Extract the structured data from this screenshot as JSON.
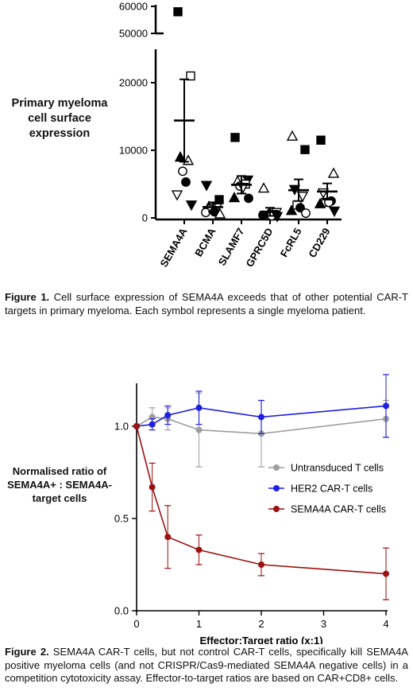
{
  "figure1": {
    "chart_data": {
      "type": "scatter",
      "ylabel": "Primary myeloma cell surface expression",
      "categories": [
        "SEMA4A",
        "BCMA",
        "SLAMF7",
        "GPRC5D",
        "FcRL5",
        "CD229"
      ],
      "y_ticks": [
        0,
        10000,
        20000,
        50000,
        60000
      ],
      "y_tick_labels": [
        "0",
        "10000",
        "20000",
        "50000",
        "60000"
      ],
      "y_axis_break": [
        22000,
        48000
      ],
      "means": [
        14400,
        1600,
        4900,
        900,
        4100,
        3900
      ],
      "sem_upper": [
        20500,
        2300,
        6200,
        1500,
        5700,
        5100
      ],
      "sem_lower": [
        8300,
        900,
        3600,
        300,
        2500,
        2700
      ],
      "points": [
        {
          "category": "SEMA4A",
          "symbol": "square-filled",
          "value": 58000
        },
        {
          "category": "SEMA4A",
          "symbol": "square-open",
          "value": 21000
        },
        {
          "category": "SEMA4A",
          "symbol": "triangle-filled",
          "value": 9000
        },
        {
          "category": "SEMA4A",
          "symbol": "triangle-open",
          "value": 8500
        },
        {
          "category": "SEMA4A",
          "symbol": "circle-open",
          "value": 6900
        },
        {
          "category": "SEMA4A",
          "symbol": "circle-filled",
          "value": 5300
        },
        {
          "category": "SEMA4A",
          "symbol": "triangle-down-open",
          "value": 3400
        },
        {
          "category": "SEMA4A",
          "symbol": "triangle-down-filled",
          "value": 1900
        },
        {
          "category": "BCMA",
          "symbol": "triangle-down-filled",
          "value": 4800
        },
        {
          "category": "BCMA",
          "symbol": "square-filled",
          "value": 2700
        },
        {
          "category": "BCMA",
          "symbol": "triangle-filled",
          "value": 1700
        },
        {
          "category": "BCMA",
          "symbol": "triangle-down-open",
          "value": 1500
        },
        {
          "category": "BCMA",
          "symbol": "square-open",
          "value": 1300
        },
        {
          "category": "BCMA",
          "symbol": "circle-filled",
          "value": 900
        },
        {
          "category": "BCMA",
          "symbol": "circle-open",
          "value": 800
        },
        {
          "category": "BCMA",
          "symbol": "triangle-open",
          "value": 600
        },
        {
          "category": "SLAMF7",
          "symbol": "square-filled",
          "value": 11900
        },
        {
          "category": "SLAMF7",
          "symbol": "triangle-down-filled",
          "value": 5600
        },
        {
          "category": "SLAMF7",
          "symbol": "triangle-open",
          "value": 5400
        },
        {
          "category": "SLAMF7",
          "symbol": "square-open",
          "value": 5000
        },
        {
          "category": "SLAMF7",
          "symbol": "circle-open",
          "value": 4700
        },
        {
          "category": "SLAMF7",
          "symbol": "triangle-down-open",
          "value": 4500
        },
        {
          "category": "SLAMF7",
          "symbol": "triangle-filled",
          "value": 3000
        },
        {
          "category": "SLAMF7",
          "symbol": "circle-filled",
          "value": 2900
        },
        {
          "category": "GPRC5D",
          "symbol": "triangle-open",
          "value": 4400
        },
        {
          "category": "GPRC5D",
          "symbol": "triangle-down-open",
          "value": 800
        },
        {
          "category": "GPRC5D",
          "symbol": "square-open",
          "value": 400
        },
        {
          "category": "GPRC5D",
          "symbol": "square-filled",
          "value": 500
        },
        {
          "category": "GPRC5D",
          "symbol": "triangle-filled",
          "value": 600
        },
        {
          "category": "GPRC5D",
          "symbol": "circle-open",
          "value": 300
        },
        {
          "category": "GPRC5D",
          "symbol": "circle-filled",
          "value": 400
        },
        {
          "category": "GPRC5D",
          "symbol": "triangle-down-filled",
          "value": 200
        },
        {
          "category": "FcRL5",
          "symbol": "triangle-open",
          "value": 12100
        },
        {
          "category": "FcRL5",
          "symbol": "square-filled",
          "value": 10100
        },
        {
          "category": "FcRL5",
          "symbol": "triangle-down-filled",
          "value": 4200
        },
        {
          "category": "FcRL5",
          "symbol": "triangle-down-open",
          "value": 3200
        },
        {
          "category": "FcRL5",
          "symbol": "square-open",
          "value": 1900
        },
        {
          "category": "FcRL5",
          "symbol": "circle-filled",
          "value": 1500
        },
        {
          "category": "FcRL5",
          "symbol": "triangle-filled",
          "value": 1100
        },
        {
          "category": "FcRL5",
          "symbol": "circle-open",
          "value": 700
        },
        {
          "category": "CD229",
          "symbol": "square-filled",
          "value": 11500
        },
        {
          "category": "CD229",
          "symbol": "triangle-open",
          "value": 6600
        },
        {
          "category": "CD229",
          "symbol": "triangle-down-open",
          "value": 3700
        },
        {
          "category": "CD229",
          "symbol": "circle-filled",
          "value": 2500
        },
        {
          "category": "CD229",
          "symbol": "square-open",
          "value": 2300
        },
        {
          "category": "CD229",
          "symbol": "circle-open",
          "value": 2300
        },
        {
          "category": "CD229",
          "symbol": "triangle-filled",
          "value": 2100
        },
        {
          "category": "CD229",
          "symbol": "triangle-down-filled",
          "value": 1000
        }
      ]
    },
    "ylabel_lines": [
      "Primary myeloma",
      "cell surface",
      "expression"
    ],
    "caption_bold": "Figure 1.",
    "caption_text": " Cell surface expression of SEMA4A exceeds that of other potential CAR-T targets in primary myeloma. Each symbol represents a single myeloma patient."
  },
  "figure2": {
    "chart_data": {
      "type": "line",
      "xlabel": "Effector:Target ratio (x:1)",
      "ylabel": "Normalised ratio of SEMA4A+ : SEMA4A- target cells",
      "xlim": [
        0,
        4
      ],
      "ylim": [
        0,
        1.3
      ],
      "x_ticks": [
        0,
        1,
        2,
        3,
        4
      ],
      "y_ticks": [
        0.0,
        0.5,
        1.0
      ],
      "y_tick_labels": [
        "0.0",
        "0.5",
        "1.0"
      ],
      "legend_position": "right",
      "series": [
        {
          "name": "Untransduced T cells",
          "color": "#9e9e9e",
          "x": [
            0,
            0.25,
            0.5,
            1,
            2,
            4
          ],
          "y": [
            1.0,
            1.05,
            1.04,
            0.98,
            0.96,
            1.04
          ],
          "err": [
            0,
            0.05,
            0.06,
            0.2,
            0.18,
            0.1
          ]
        },
        {
          "name": "HER2 CAR-T cells",
          "color": "#1f1fe0",
          "x": [
            0,
            0.25,
            0.5,
            1,
            2,
            4
          ],
          "y": [
            1.0,
            1.01,
            1.06,
            1.1,
            1.05,
            1.11
          ],
          "err": [
            0,
            0.03,
            0.05,
            0.09,
            0.09,
            0.17
          ]
        },
        {
          "name": "SEMA4A CAR-T cells",
          "color": "#9b1212",
          "x": [
            0,
            0.25,
            0.5,
            1,
            2,
            4
          ],
          "y": [
            1.0,
            0.67,
            0.4,
            0.33,
            0.25,
            0.2
          ],
          "err": [
            0,
            0.13,
            0.17,
            0.08,
            0.06,
            0.14
          ]
        }
      ]
    },
    "ylabel_lines": [
      "Normalised ratio of",
      "SEMA4A+ : SEMA4A-",
      "target cells"
    ],
    "caption_bold": "Figure 2.",
    "caption_text": " SEMA4A CAR-T cells, but not control CAR-T cells, specifically kill SEMA4A positive myeloma cells (and not CRISPR/Cas9-mediated SEMA4A negative cells) in a competition cytotoxicity assay. Effector-to-target ratios  are based on CAR+CD8+ cells."
  }
}
